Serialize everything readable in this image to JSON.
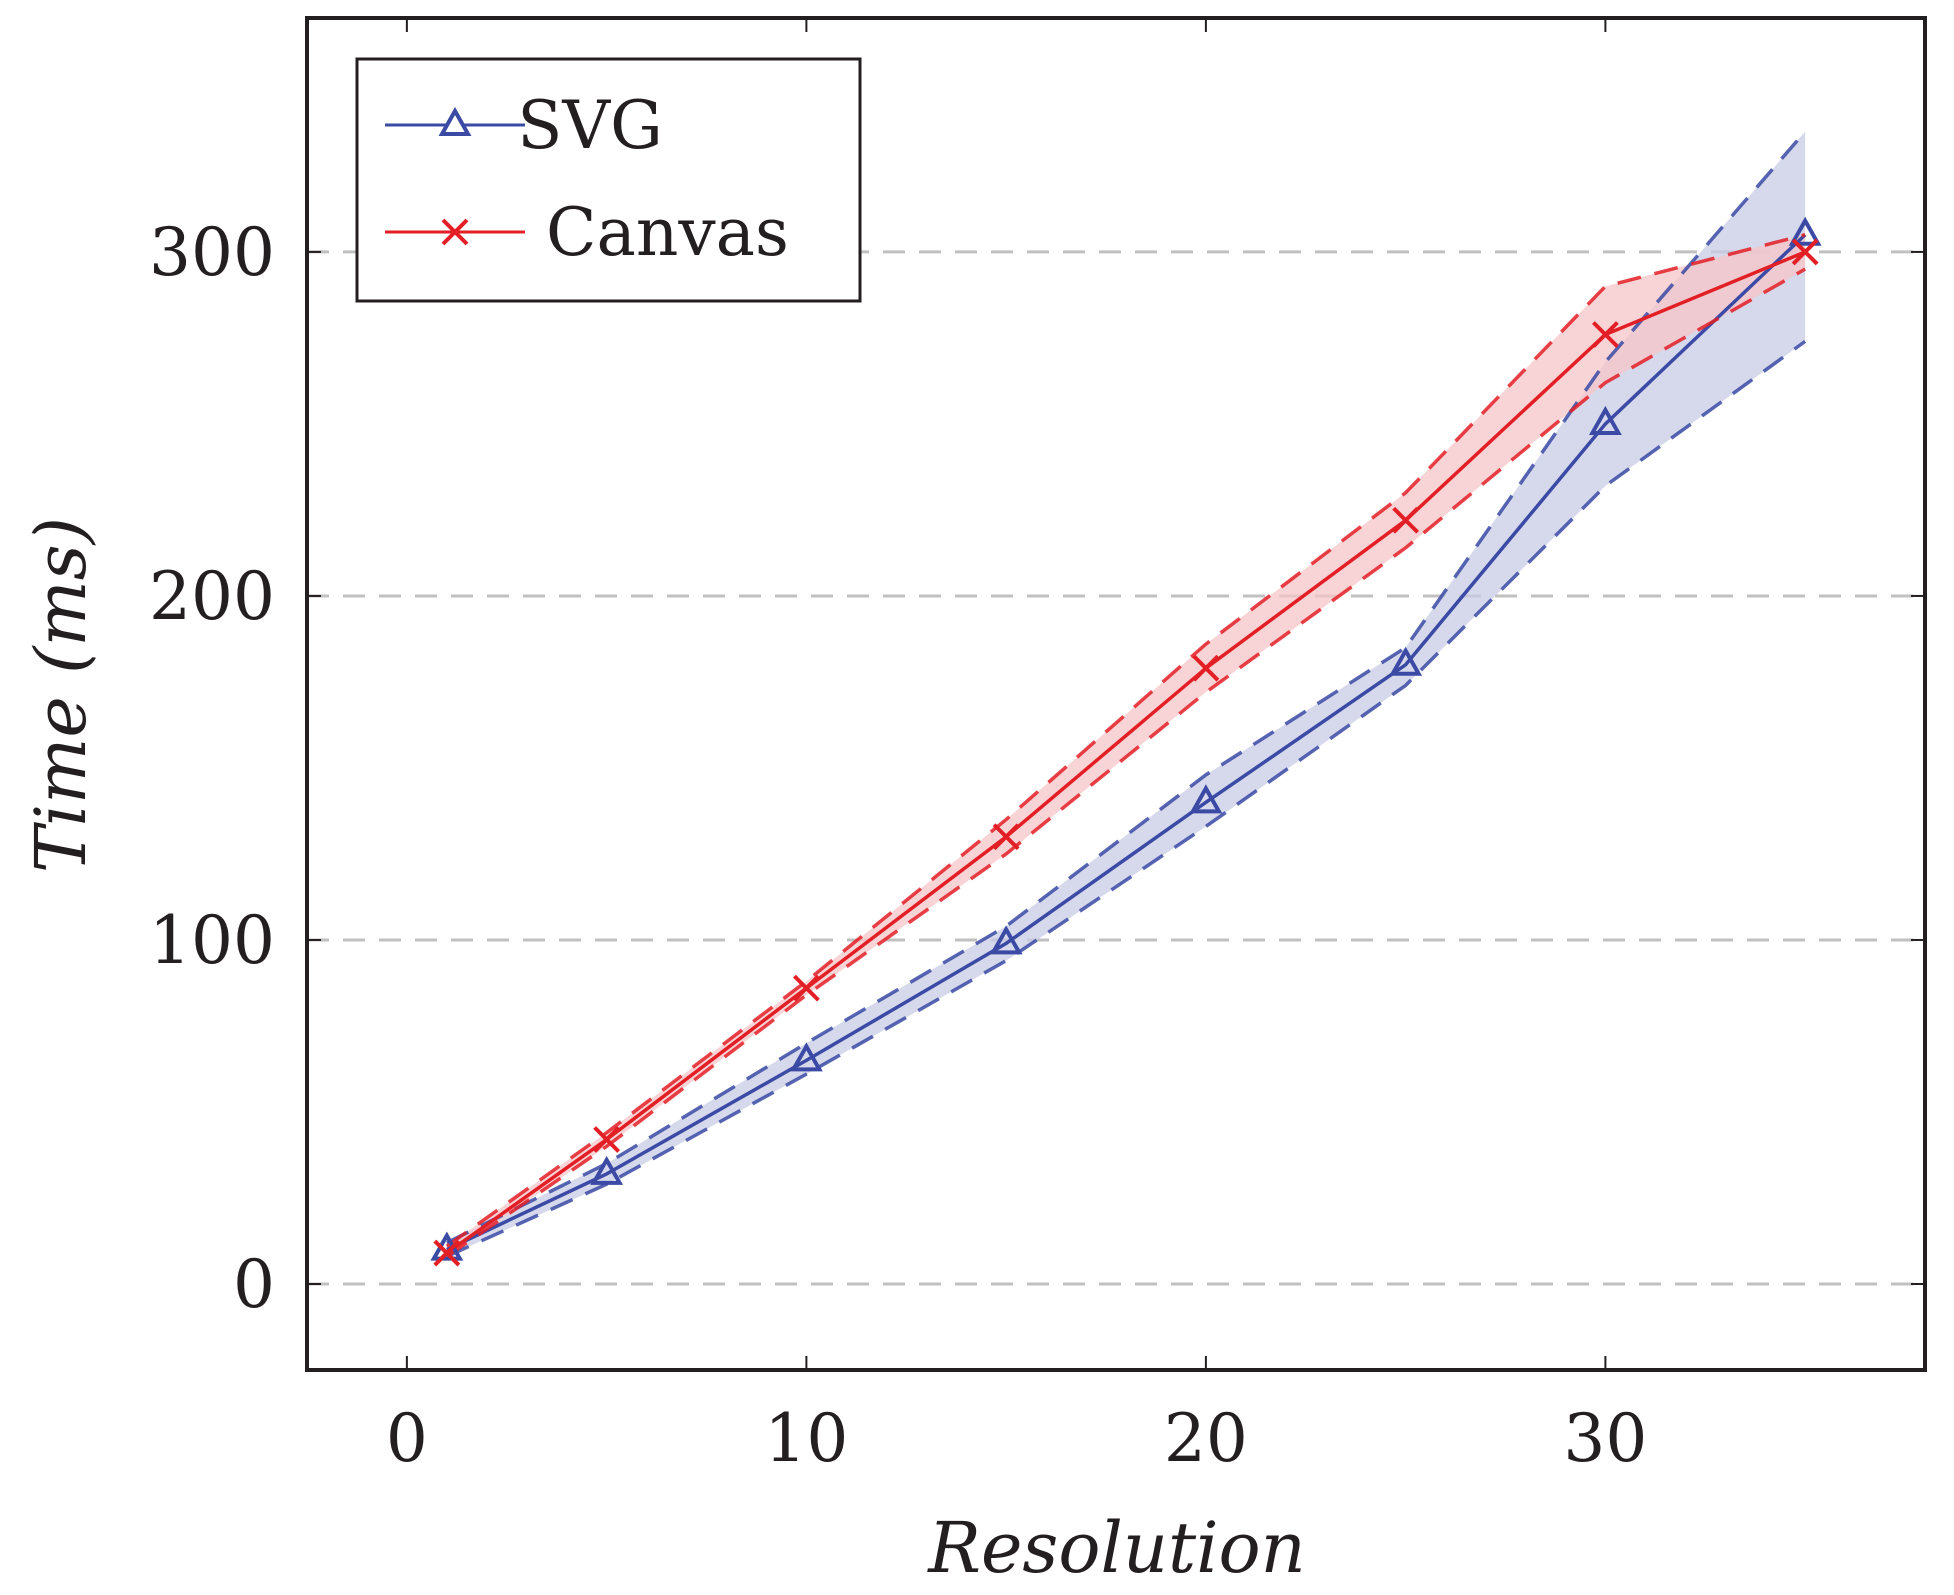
{
  "chart_data": {
    "type": "line",
    "title": "",
    "xlabel": "Resolution",
    "ylabel": "Time (ms)",
    "xlim": [
      -2.5,
      38
    ],
    "ylim": [
      -25,
      368
    ],
    "x_ticks": [
      0,
      10,
      20,
      30
    ],
    "y_ticks": [
      0,
      100,
      200,
      300
    ],
    "grid": "horizontal dashed",
    "legend_position": "top-left",
    "x": [
      1,
      5,
      10,
      15,
      20,
      25,
      30,
      35
    ],
    "series": [
      {
        "name": "SVG",
        "marker": "triangle",
        "color": "#3a4aa5",
        "band_color": "#c8cbe6",
        "values": [
          10,
          32,
          65,
          99,
          140,
          180,
          250,
          305
        ],
        "upper": [
          12,
          35,
          70,
          104,
          148,
          185,
          268,
          335
        ],
        "lower": [
          8,
          29,
          61,
          94,
          133,
          174,
          232,
          274
        ]
      },
      {
        "name": "Canvas",
        "marker": "x",
        "color": "#e31f26",
        "band_color": "#f7c6c8",
        "values": [
          9,
          42,
          86,
          130,
          179,
          222,
          276,
          300
        ],
        "upper": [
          11,
          44,
          88,
          135,
          186,
          230,
          290,
          305
        ],
        "lower": [
          8,
          40,
          84,
          125,
          172,
          214,
          262,
          295
        ]
      }
    ]
  }
}
